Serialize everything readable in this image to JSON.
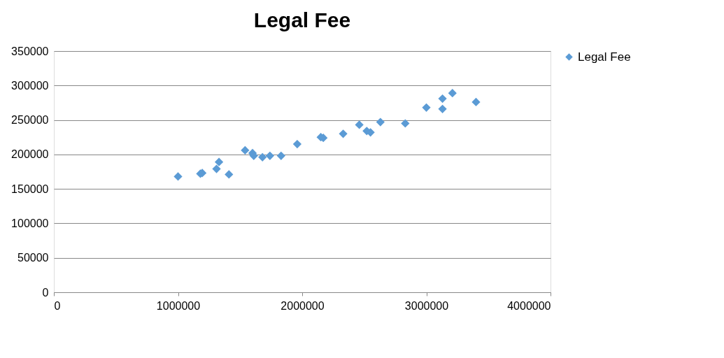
{
  "chart_data": {
    "type": "scatter",
    "title": "Legal Fee",
    "series": [
      {
        "name": "Legal Fee",
        "color": "#5b9bd5",
        "x": [
          1000000,
          1180000,
          1195000,
          1310000,
          1330000,
          1410000,
          1540000,
          1600000,
          1610000,
          1680000,
          1740000,
          1830000,
          1960000,
          2150000,
          2170000,
          2330000,
          2460000,
          2520000,
          2550000,
          2630000,
          2830000,
          3000000,
          3130000,
          3130000,
          3210000,
          3400000
        ],
        "values": [
          168000,
          172000,
          173000,
          179000,
          189000,
          171000,
          206000,
          202000,
          198000,
          196000,
          198000,
          198000,
          215000,
          225000,
          224000,
          230000,
          243000,
          234000,
          232000,
          247000,
          245000,
          268000,
          281000,
          266000,
          289000,
          276000
        ]
      }
    ],
    "xlim": [
      0,
      4000000
    ],
    "xticks": [
      0,
      1000000,
      2000000,
      3000000,
      4000000
    ],
    "ylim": [
      0,
      350000
    ],
    "yticks": [
      0,
      50000,
      100000,
      150000,
      200000,
      250000,
      300000,
      350000
    ],
    "grid": "y",
    "legend": "right",
    "marker": "diamond"
  }
}
